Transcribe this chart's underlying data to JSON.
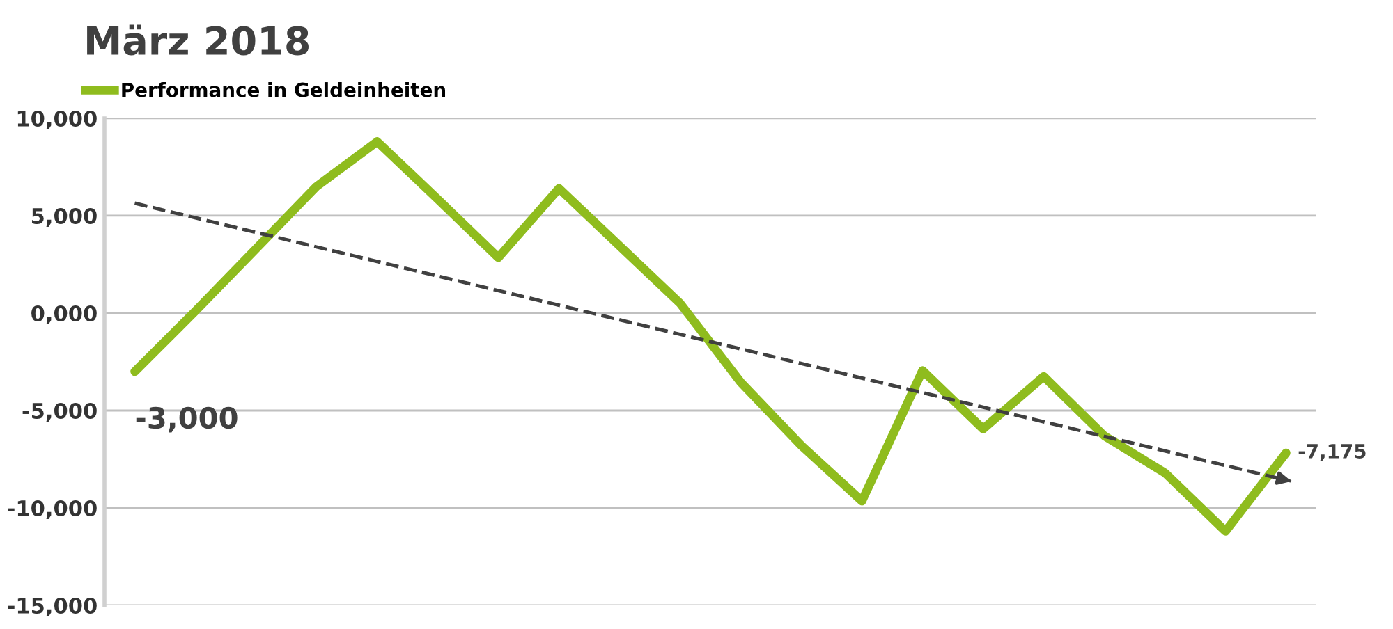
{
  "chart_data": {
    "type": "line",
    "title": "März 2018",
    "categories": [
      null,
      null,
      null,
      null,
      null,
      null,
      null,
      null,
      null,
      null,
      null,
      null,
      null,
      null,
      null,
      null,
      null,
      null,
      null,
      null
    ],
    "series": [
      {
        "name": "Performance in Geldeinheiten",
        "color": "#8fbc1e",
        "values": [
          -3000,
          100,
          3300,
          6500,
          8800,
          5850,
          2850,
          6400,
          3450,
          500,
          -3550,
          -6800,
          -9650,
          -2950,
          -5950,
          -3250,
          -6300,
          -8200,
          -11200,
          -7175
        ],
        "value_labels": [
          "-3,000",
          null,
          null,
          null,
          null,
          null,
          null,
          null,
          null,
          null,
          null,
          null,
          null,
          null,
          null,
          null,
          null,
          null,
          null,
          "-7,175"
        ]
      },
      {
        "type": "line",
        "color": "#404040",
        "line_style": "dashed",
        "values": [
          5640,
          null,
          null,
          null,
          null,
          null,
          null,
          null,
          null,
          null,
          null,
          null,
          null,
          null,
          null,
          null,
          null,
          null,
          null,
          -8570
        ]
      }
    ],
    "ylim": [
      -15000,
      10000
    ],
    "yticks": [
      {
        "value": -15000,
        "label": "-15,000"
      },
      {
        "value": -10000,
        "label": "-10,000"
      },
      {
        "value": -5000,
        "label": "-5,000"
      },
      {
        "value": 0,
        "label": "0,000"
      },
      {
        "value": 5000,
        "label": "5,000"
      },
      {
        "value": 10000,
        "label": "10,000"
      }
    ],
    "grid": "y",
    "legend": "top left",
    "tick_labels": "y",
    "line_style": "solid"
  }
}
